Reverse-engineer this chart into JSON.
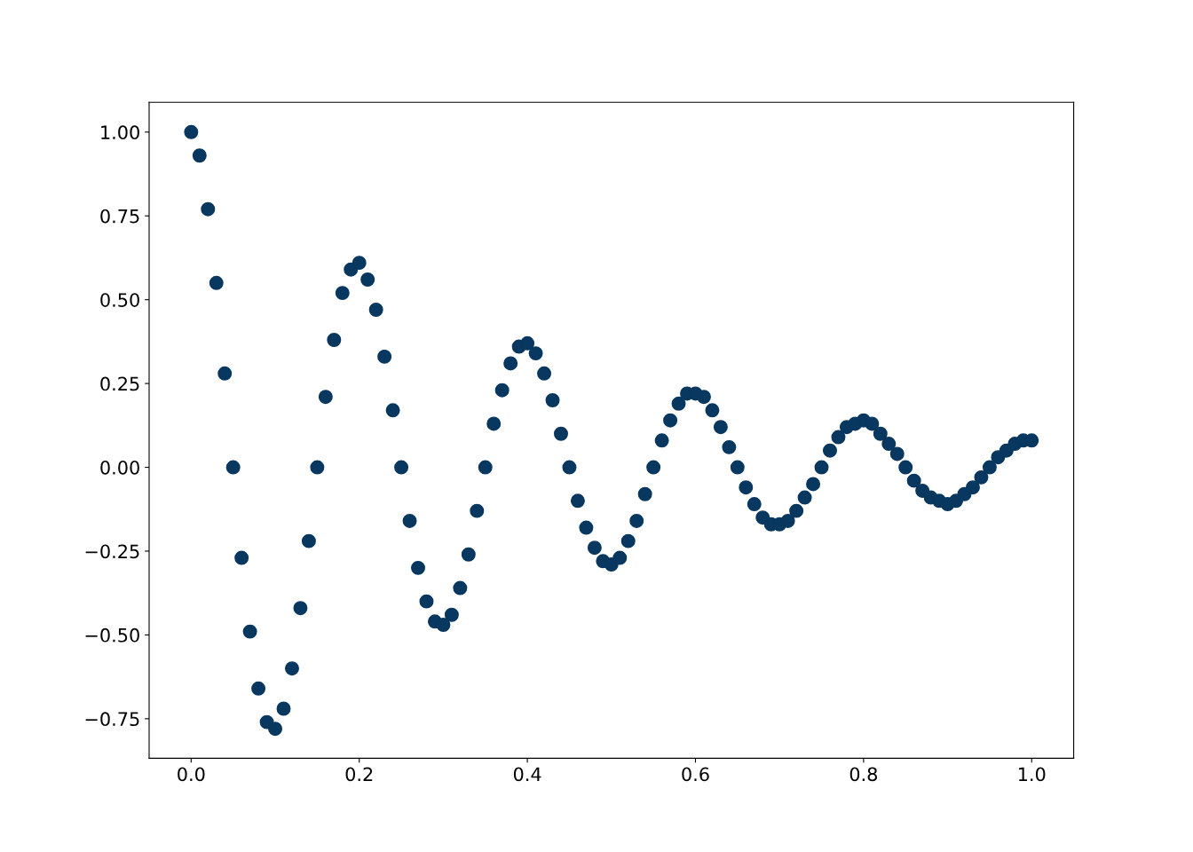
{
  "chart_data": {
    "type": "scatter",
    "marker": "circle",
    "grid": false,
    "x": [
      0,
      0.01,
      0.02,
      0.03,
      0.04,
      0.05,
      0.06,
      0.07,
      0.08,
      0.09,
      0.1,
      0.11,
      0.12,
      0.13,
      0.14,
      0.15,
      0.16,
      0.17,
      0.18,
      0.19,
      0.2,
      0.21,
      0.22,
      0.23,
      0.24,
      0.25,
      0.26,
      0.27,
      0.28,
      0.29,
      0.3,
      0.31,
      0.32,
      0.33,
      0.34,
      0.35,
      0.36,
      0.37,
      0.38,
      0.39,
      0.4,
      0.41,
      0.42,
      0.43,
      0.44,
      0.45,
      0.46,
      0.47,
      0.48,
      0.49,
      0.5,
      0.51,
      0.52,
      0.53,
      0.54,
      0.55,
      0.56,
      0.57,
      0.58,
      0.59,
      0.6,
      0.61,
      0.62,
      0.63,
      0.64,
      0.65,
      0.66,
      0.67,
      0.68,
      0.69,
      0.7,
      0.71,
      0.72,
      0.73,
      0.74,
      0.75,
      0.76,
      0.77,
      0.78,
      0.79,
      0.8,
      0.81,
      0.82,
      0.83,
      0.84,
      0.85,
      0.86,
      0.87,
      0.88,
      0.89,
      0.9,
      0.91,
      0.92,
      0.93,
      0.94,
      0.95,
      0.96,
      0.97,
      0.98,
      0.99,
      1.0
    ],
    "series": [
      {
        "color": "#08375f",
        "values": [
          1.0,
          0.93,
          0.77,
          0.55,
          0.28,
          0.0,
          -0.27,
          -0.49,
          -0.66,
          -0.76,
          -0.78,
          -0.72,
          -0.6,
          -0.42,
          -0.22,
          0.0,
          0.21,
          0.38,
          0.52,
          0.59,
          0.61,
          0.56,
          0.47,
          0.33,
          0.17,
          0.0,
          -0.16,
          -0.3,
          -0.4,
          -0.46,
          -0.47,
          -0.44,
          -0.36,
          -0.26,
          -0.13,
          0.0,
          0.13,
          0.23,
          0.31,
          0.36,
          0.37,
          0.34,
          0.28,
          0.2,
          0.1,
          0.0,
          -0.1,
          -0.18,
          -0.24,
          -0.28,
          -0.29,
          -0.27,
          -0.22,
          -0.16,
          -0.08,
          0.0,
          0.08,
          0.14,
          0.19,
          0.22,
          0.22,
          0.21,
          0.17,
          0.12,
          0.06,
          0.0,
          -0.06,
          -0.11,
          -0.15,
          -0.17,
          -0.17,
          -0.16,
          -0.13,
          -0.09,
          -0.05,
          0.0,
          0.05,
          0.09,
          0.12,
          0.13,
          0.14,
          0.13,
          0.1,
          0.07,
          0.04,
          0.0,
          -0.04,
          -0.07,
          -0.09,
          -0.1,
          -0.11,
          -0.1,
          -0.08,
          -0.06,
          -0.03,
          0.0,
          0.03,
          0.05,
          0.07,
          0.08,
          0.08
        ]
      }
    ],
    "xlim": [
      -0.05,
      1.05
    ],
    "ylim": [
      -0.868,
      1.089
    ],
    "xticks": [
      {
        "value": 0,
        "label": "0.0"
      },
      {
        "value": 0.2,
        "label": "0.2"
      },
      {
        "value": 0.4,
        "label": "0.4"
      },
      {
        "value": 0.6,
        "label": "0.6"
      },
      {
        "value": 0.8,
        "label": "0.8"
      },
      {
        "value": 1.0,
        "label": "1.0"
      }
    ],
    "yticks": [
      {
        "value": -0.75,
        "label": "−0.75"
      },
      {
        "value": -0.5,
        "label": "−0.50"
      },
      {
        "value": -0.25,
        "label": "−0.25"
      },
      {
        "value": 0,
        "label": "0.00"
      },
      {
        "value": 0.25,
        "label": "0.25"
      },
      {
        "value": 0.5,
        "label": "0.50"
      },
      {
        "value": 0.75,
        "label": "0.75"
      },
      {
        "value": 1.0,
        "label": "1.00"
      }
    ]
  }
}
